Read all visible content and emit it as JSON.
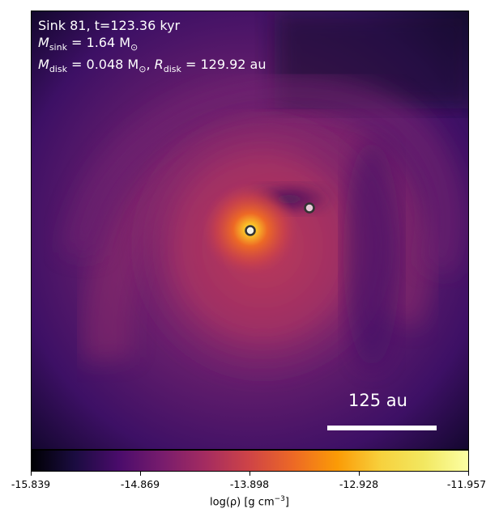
{
  "annotation": {
    "line1": "Sink 81, t=123.36 kyr",
    "line2_var": "M",
    "line2_sub": "sink",
    "line2_eq": " = 1.64 M",
    "line2_sun": "⊙",
    "line3_var": "M",
    "line3_sub": "disk",
    "line3_eq": " = 0.048 M",
    "line3_sun": "⊙",
    "line3_sep": ", ",
    "line3_var2": "R",
    "line3_sub2": "disk",
    "line3_eq2": " = 129.92 au"
  },
  "scalebar": {
    "label": "125 au"
  },
  "colorbar": {
    "ticks": [
      "-15.839",
      "-14.869",
      "-13.898",
      "-12.928",
      "-11.957"
    ],
    "label_pre": "log(ρ) [g cm",
    "label_sup": "−3",
    "label_post": "]",
    "colormap": "inferno"
  },
  "colors": {
    "background": "#ffffff",
    "annotation_text": "#ffffff",
    "sink_primary_fill": "#f3f3e6",
    "sink_secondary_fill": "#e7c9d8",
    "sink_outline": "#333333"
  }
}
